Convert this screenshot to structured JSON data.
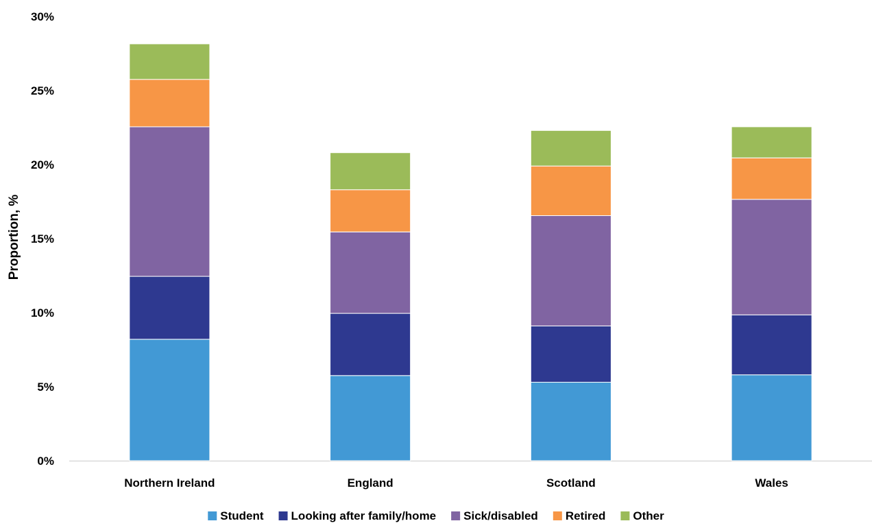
{
  "chart_data": {
    "type": "bar",
    "stacked": true,
    "title": "",
    "xlabel": "",
    "ylabel": "Proportion, %",
    "ylim": [
      0,
      30
    ],
    "y_ticks": [
      0,
      5,
      10,
      15,
      20,
      25,
      30
    ],
    "y_tick_labels": [
      "0%",
      "5%",
      "10%",
      "15%",
      "20%",
      "25%",
      "30%"
    ],
    "grid": false,
    "legend_position": "bottom",
    "categories": [
      "Northern Ireland",
      "England",
      "Scotland",
      "Wales"
    ],
    "series": [
      {
        "name": "Student",
        "color": "#4299D5",
        "values": [
          8.2,
          5.75,
          5.3,
          5.8
        ]
      },
      {
        "name": "Looking after family/home",
        "color": "#2E3990",
        "values": [
          4.25,
          4.2,
          3.8,
          4.05
        ]
      },
      {
        "name": "Sick/disabled",
        "color": "#8064A2",
        "values": [
          10.1,
          5.5,
          7.45,
          7.8
        ]
      },
      {
        "name": "Retired",
        "color": "#F79646",
        "values": [
          3.2,
          2.85,
          3.35,
          2.8
        ]
      },
      {
        "name": "Other",
        "color": "#9BBB59",
        "values": [
          2.4,
          2.5,
          2.4,
          2.1
        ]
      }
    ]
  }
}
